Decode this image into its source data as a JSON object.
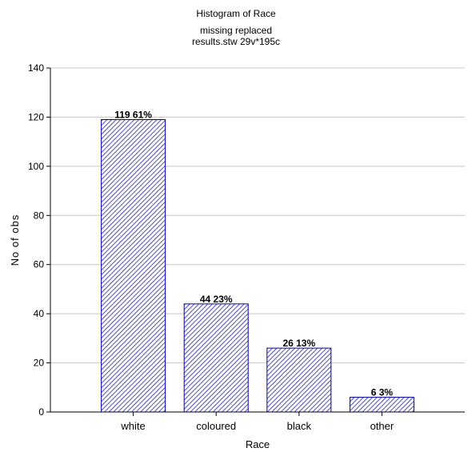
{
  "chart_data": {
    "type": "bar",
    "title": "Histogram of Race",
    "subtitle": [
      "missing replaced",
      "results.stw 29v*195c"
    ],
    "xlabel": "Race",
    "ylabel": "No of obs",
    "categories": [
      "white",
      "coloured",
      "black",
      "other"
    ],
    "values": [
      119,
      44,
      26,
      6
    ],
    "bar_labels": [
      "119  61%",
      "44  23%",
      "26  13%",
      "6  3%"
    ],
    "ylim": [
      0,
      140
    ],
    "yticks": [
      0,
      20,
      40,
      60,
      80,
      100,
      120,
      140
    ],
    "grid": "horizontal",
    "bar_fill": "diagonal hatch",
    "colors": {
      "bar_stroke": "#0000cc",
      "hatch": "#2222dd",
      "grid": "#c8c8c8",
      "axis": "#000000"
    }
  }
}
